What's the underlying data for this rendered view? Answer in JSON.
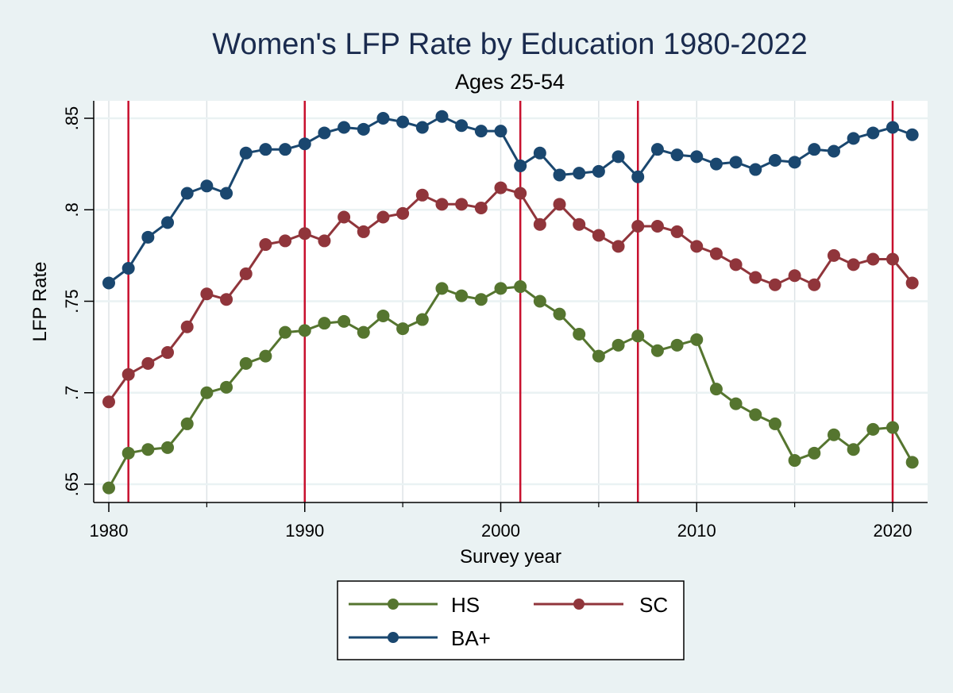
{
  "chart_data": {
    "type": "line",
    "title": "Women's LFP Rate by Education 1980-2022",
    "subtitle": "Ages 25-54",
    "xlabel": "Survey year",
    "ylabel": "LFP Rate",
    "xlim": [
      1979.2,
      2021.9
    ],
    "ylim": [
      0.6424,
      0.8597
    ],
    "x_ticks": [
      1980,
      1990,
      2000,
      2010,
      2020
    ],
    "x_tick_labels": [
      "1980",
      "1990",
      "2000",
      "2010",
      "2020"
    ],
    "x_minor_ticks": [
      1985,
      1995,
      2005,
      2015
    ],
    "y_ticks": [
      0.65,
      0.7,
      0.75,
      0.8,
      0.85
    ],
    "y_tick_labels": [
      ".65",
      ".7",
      ".75",
      ".8",
      ".85"
    ],
    "grid": true,
    "vertical_reference_lines": [
      1981,
      1990,
      2001,
      2007,
      2020
    ],
    "reference_line_color": "#c8102e",
    "legend_position": "bottom",
    "x": [
      1980,
      1981,
      1982,
      1983,
      1984,
      1985,
      1986,
      1987,
      1988,
      1989,
      1990,
      1991,
      1992,
      1993,
      1994,
      1995,
      1996,
      1997,
      1998,
      1999,
      2000,
      2001,
      2002,
      2003,
      2004,
      2005,
      2006,
      2007,
      2008,
      2009,
      2010,
      2011,
      2012,
      2013,
      2014,
      2015,
      2016,
      2017,
      2018,
      2019,
      2020,
      2021
    ],
    "series": [
      {
        "name": "HS",
        "color": "#55752f",
        "values": [
          0.648,
          0.667,
          0.669,
          0.67,
          0.683,
          0.7,
          0.703,
          0.716,
          0.72,
          0.733,
          0.734,
          0.738,
          0.739,
          0.733,
          0.742,
          0.735,
          0.74,
          0.757,
          0.753,
          0.751,
          0.757,
          0.758,
          0.75,
          0.743,
          0.732,
          0.72,
          0.726,
          0.731,
          0.723,
          0.726,
          0.729,
          0.702,
          0.694,
          0.688,
          0.683,
          0.663,
          0.667,
          0.677,
          0.669,
          0.68,
          0.681,
          0.662
        ]
      },
      {
        "name": "SC",
        "color": "#90353b",
        "values": [
          0.695,
          0.71,
          0.716,
          0.722,
          0.736,
          0.754,
          0.751,
          0.765,
          0.781,
          0.783,
          0.787,
          0.783,
          0.796,
          0.788,
          0.796,
          0.798,
          0.808,
          0.803,
          0.803,
          0.801,
          0.812,
          0.809,
          0.792,
          0.803,
          0.792,
          0.786,
          0.78,
          0.791,
          0.791,
          0.788,
          0.78,
          0.776,
          0.77,
          0.763,
          0.759,
          0.764,
          0.759,
          0.775,
          0.77,
          0.773,
          0.773,
          0.76
        ]
      },
      {
        "name": "BA+",
        "color": "#1a476f",
        "values": [
          0.76,
          0.768,
          0.785,
          0.793,
          0.809,
          0.813,
          0.809,
          0.831,
          0.833,
          0.833,
          0.836,
          0.842,
          0.845,
          0.844,
          0.85,
          0.848,
          0.845,
          0.851,
          0.846,
          0.843,
          0.843,
          0.824,
          0.831,
          0.819,
          0.82,
          0.821,
          0.829,
          0.818,
          0.833,
          0.83,
          0.829,
          0.825,
          0.826,
          0.822,
          0.827,
          0.826,
          0.833,
          0.832,
          0.839,
          0.842,
          0.845,
          0.841
        ]
      }
    ]
  }
}
